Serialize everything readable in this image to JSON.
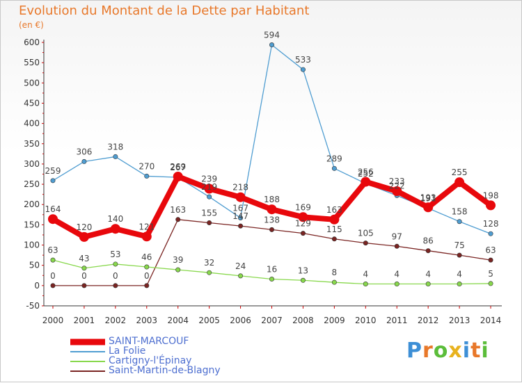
{
  "chart_data": {
    "type": "line",
    "title": "Evolution du Montant de la Dette par Habitant",
    "subtitle": "(en €)",
    "x": [
      "2000",
      "2001",
      "2002",
      "2003",
      "2004",
      "2005",
      "2006",
      "2007",
      "2008",
      "2009",
      "2010",
      "2011",
      "2012",
      "2013",
      "2014"
    ],
    "ylim": [
      -50,
      600
    ],
    "yticks": [
      -50,
      0,
      50,
      100,
      150,
      200,
      250,
      300,
      350,
      400,
      450,
      500,
      550,
      600
    ],
    "grid": false,
    "legend": "bottom-left",
    "series": [
      {
        "name": "SAINT-MARCOUF",
        "color": "#e8080c",
        "values": [
          164,
          120,
          140,
          121,
          269,
          239,
          218,
          188,
          169,
          163,
          256,
          233,
          193,
          255,
          198
        ],
        "labels": [
          "164",
          "120",
          "140",
          "121",
          "269",
          "239",
          "218",
          "188",
          "169",
          "163",
          "256",
          "233",
          "193",
          "255",
          "198"
        ]
      },
      {
        "name": "La Folie",
        "color": "#4f9dd1",
        "values": [
          259,
          306,
          318,
          270,
          267,
          219,
          167,
          594,
          533,
          289,
          252,
          222,
          191,
          158,
          128
        ],
        "labels": [
          "259",
          "306",
          "318",
          "270",
          "267",
          "219",
          "167",
          "594",
          "533",
          "289",
          "252",
          "222",
          "191",
          "158",
          "128"
        ]
      },
      {
        "name": "Cartigny-l'Épinay",
        "color": "#88d84c",
        "values": [
          63,
          43,
          53,
          46,
          39,
          32,
          24,
          16,
          13,
          8,
          4,
          4,
          4,
          4,
          5
        ],
        "labels": [
          "63",
          "43",
          "53",
          "46",
          "39",
          "32",
          "24",
          "16",
          "13",
          "8",
          "4",
          "4",
          "4",
          "4",
          "5"
        ]
      },
      {
        "name": "Saint-Martin-de-Blagny",
        "color": "#7a2422",
        "values": [
          0,
          0,
          0,
          0,
          163,
          155,
          147,
          138,
          129,
          115,
          105,
          97,
          86,
          75,
          63
        ],
        "labels": [
          "0",
          "0",
          "0",
          "0",
          "163",
          "155",
          "147",
          "138",
          "129",
          "115",
          "105",
          "97",
          "86",
          "75",
          "63"
        ]
      }
    ]
  },
  "logo": {
    "letters": [
      "P",
      "r",
      "o",
      "x",
      "i",
      "t",
      "i"
    ],
    "colors": [
      "#3d8fd6",
      "#e8782a",
      "#5bbd3a",
      "#e8b21e",
      "#3d8fd6",
      "#e8782a",
      "#5bbd3a"
    ]
  }
}
